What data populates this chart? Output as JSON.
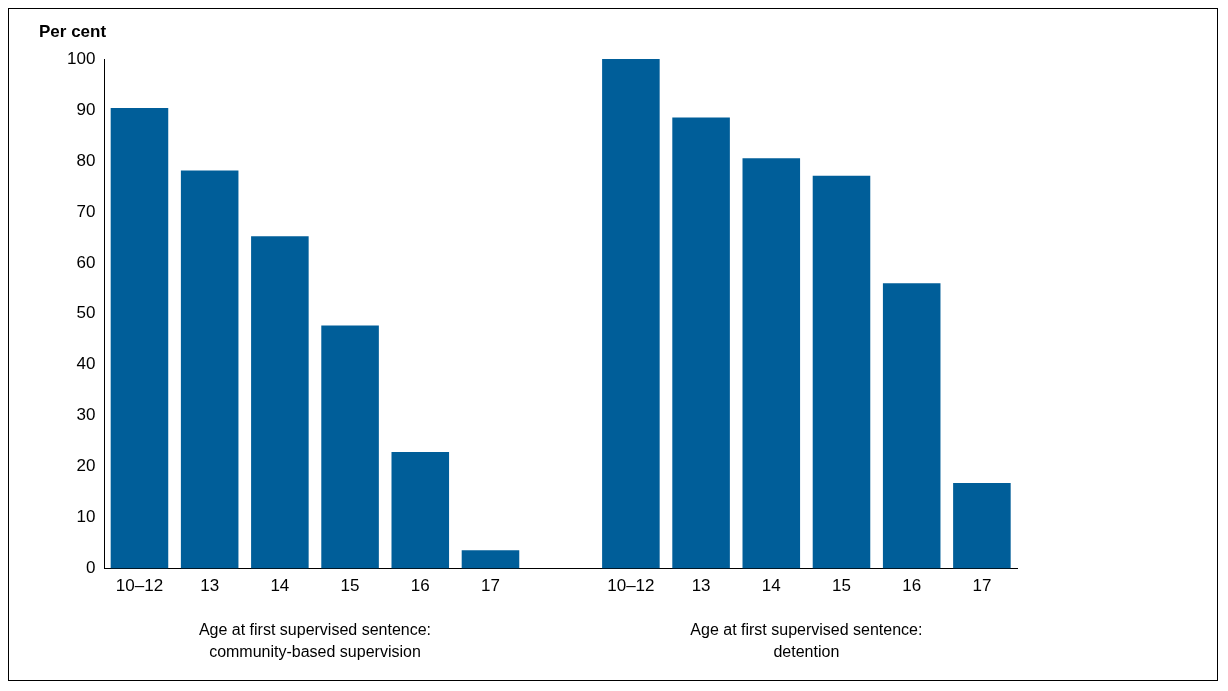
{
  "chart_data": {
    "type": "bar",
    "ylabel": "Per cent",
    "categories": [
      "10–12",
      "13",
      "14",
      "15",
      "16",
      "17",
      null,
      "10–12",
      "13",
      "14",
      "15",
      "16",
      "17"
    ],
    "values": [
      90.4,
      78.1,
      65.2,
      47.7,
      22.9,
      3.6,
      null,
      100,
      88.5,
      80.5,
      77.1,
      56,
      16.8
    ],
    "color": "#005e99",
    "ylim": [
      0,
      100
    ],
    "yticks": [
      0,
      10,
      20,
      30,
      40,
      50,
      60,
      70,
      80,
      90,
      100
    ],
    "grid": false,
    "legend": false,
    "annotations": [
      "Age at first supervised sentence:\ncommunity-based supervision",
      "Age at first supervised sentence:\ndetention"
    ]
  }
}
